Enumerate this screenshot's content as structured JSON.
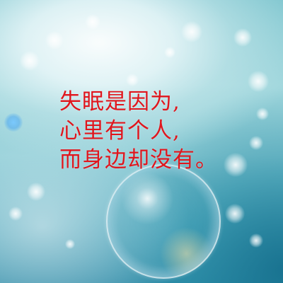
{
  "poem": {
    "lines": [
      "失眠是因为,",
      "心里有个人,",
      "而身边却没有。"
    ]
  },
  "colors": {
    "text": "#e0161d",
    "sky_light": "#eef8fa",
    "sky_mid": "#9fd6dc",
    "sky_deep": "#2e8aa6"
  }
}
